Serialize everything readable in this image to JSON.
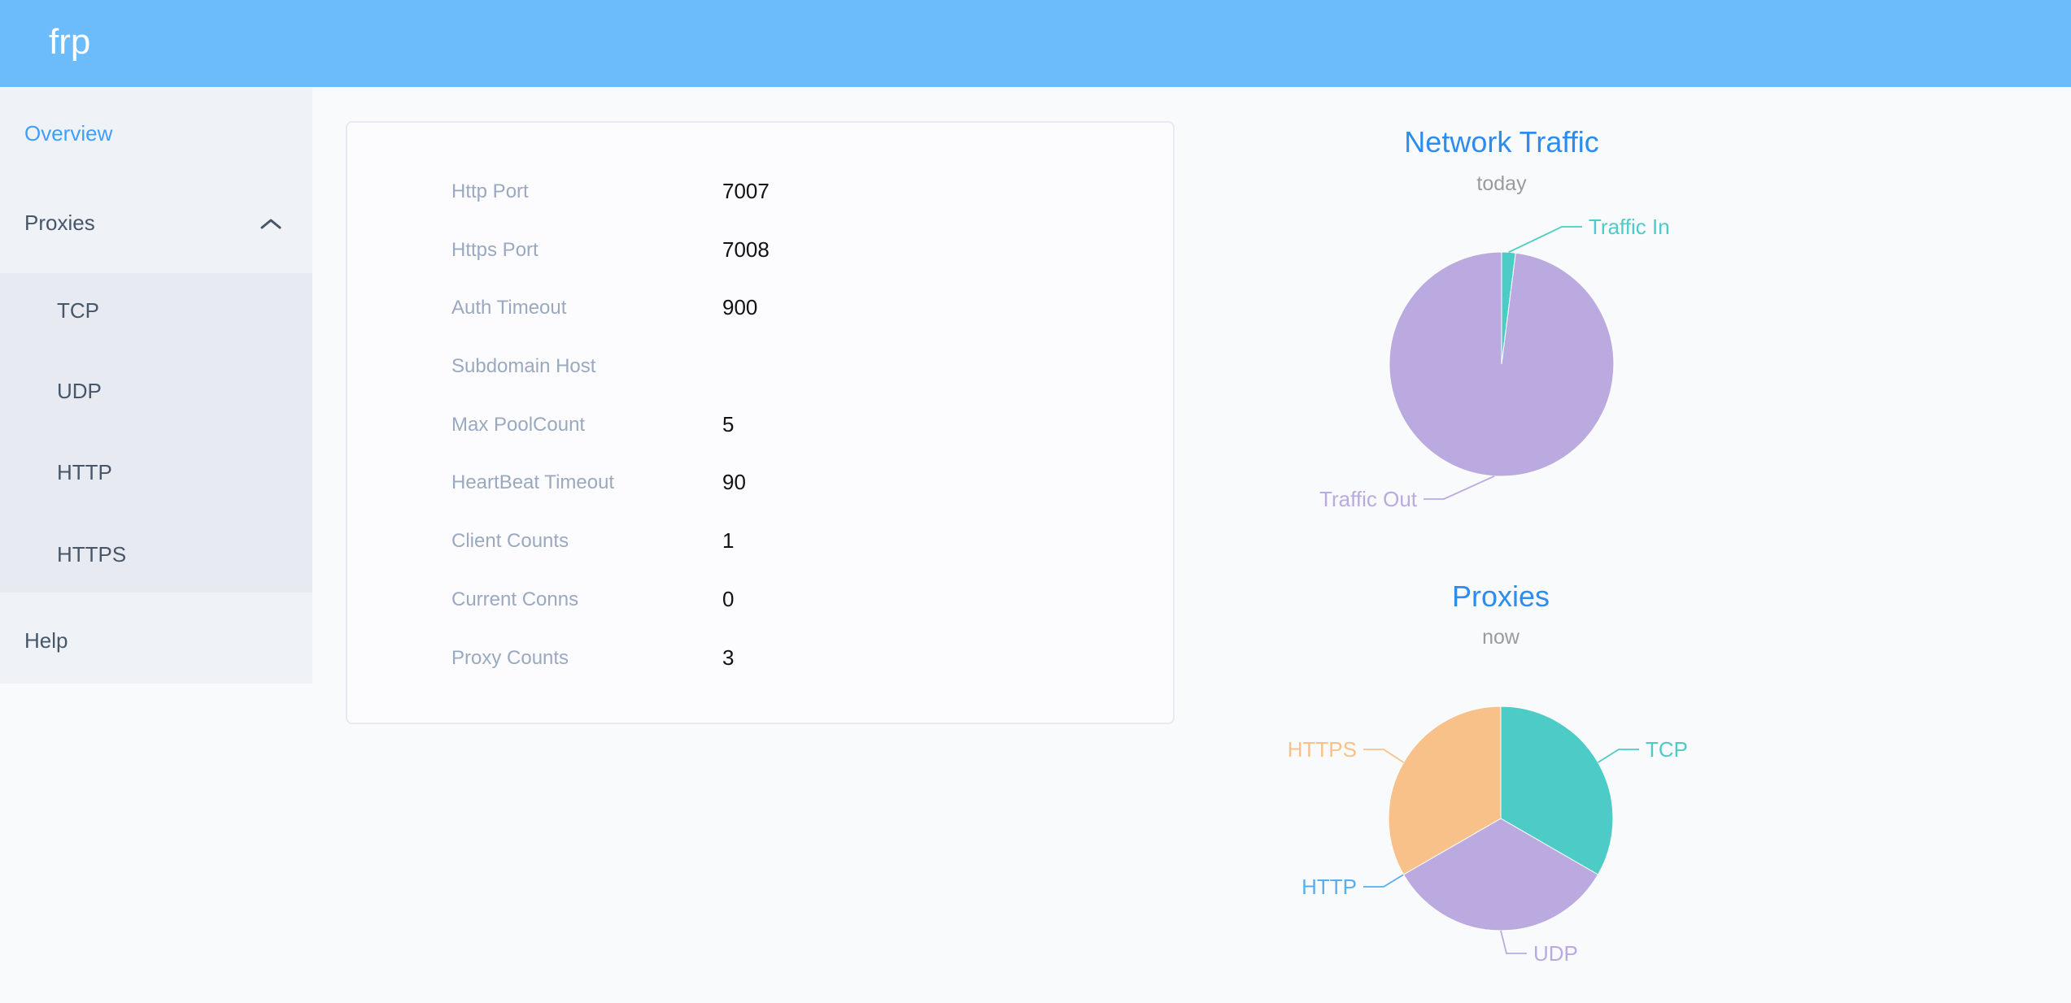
{
  "header": {
    "logo": "frp"
  },
  "sidebar": {
    "overview": "Overview",
    "proxies": "Proxies",
    "tcp": "TCP",
    "udp": "UDP",
    "http": "HTTP",
    "https": "HTTPS",
    "help": "Help"
  },
  "server_info": {
    "rows": [
      {
        "label": "Http Port",
        "value": "7007"
      },
      {
        "label": "Https Port",
        "value": "7008"
      },
      {
        "label": "Auth Timeout",
        "value": "900"
      },
      {
        "label": "Subdomain Host",
        "value": ""
      },
      {
        "label": "Max PoolCount",
        "value": "5"
      },
      {
        "label": "HeartBeat Timeout",
        "value": "90"
      },
      {
        "label": "Client Counts",
        "value": "1"
      },
      {
        "label": "Current Conns",
        "value": "0"
      },
      {
        "label": "Proxy Counts",
        "value": "3"
      }
    ]
  },
  "chart_data": [
    {
      "type": "pie",
      "title": "Network Traffic",
      "subtitle": "today",
      "labels": [
        "Traffic In",
        "Traffic Out"
      ],
      "values": [
        2,
        98
      ],
      "unit": "percent of circle (estimated from arc angles; byte values not shown)",
      "colors": [
        "#4DCCC7",
        "#BBAAE0"
      ],
      "label_position": "outside",
      "legend": "none"
    },
    {
      "type": "pie",
      "title": "Proxies",
      "subtitle": "now",
      "labels": [
        "TCP",
        "UDP",
        "HTTP",
        "HTTPS"
      ],
      "values": [
        1,
        1,
        0,
        1
      ],
      "unit": "proxy count (HTTP slice is zero)",
      "colors": [
        "#4DCCC7",
        "#BBAAE0",
        "#5AAEEF",
        "#F8C189"
      ],
      "label_position": "outside",
      "legend": "none"
    }
  ],
  "colors": {
    "header_bg": "#6CBCFB",
    "active_link": "#409EFF",
    "sidebar_text": "#475669",
    "title_blue": "#2D8CF0",
    "label_gray": "#9AA9BF",
    "value_black": "#121212",
    "page_bg": "#F9FAFB"
  }
}
